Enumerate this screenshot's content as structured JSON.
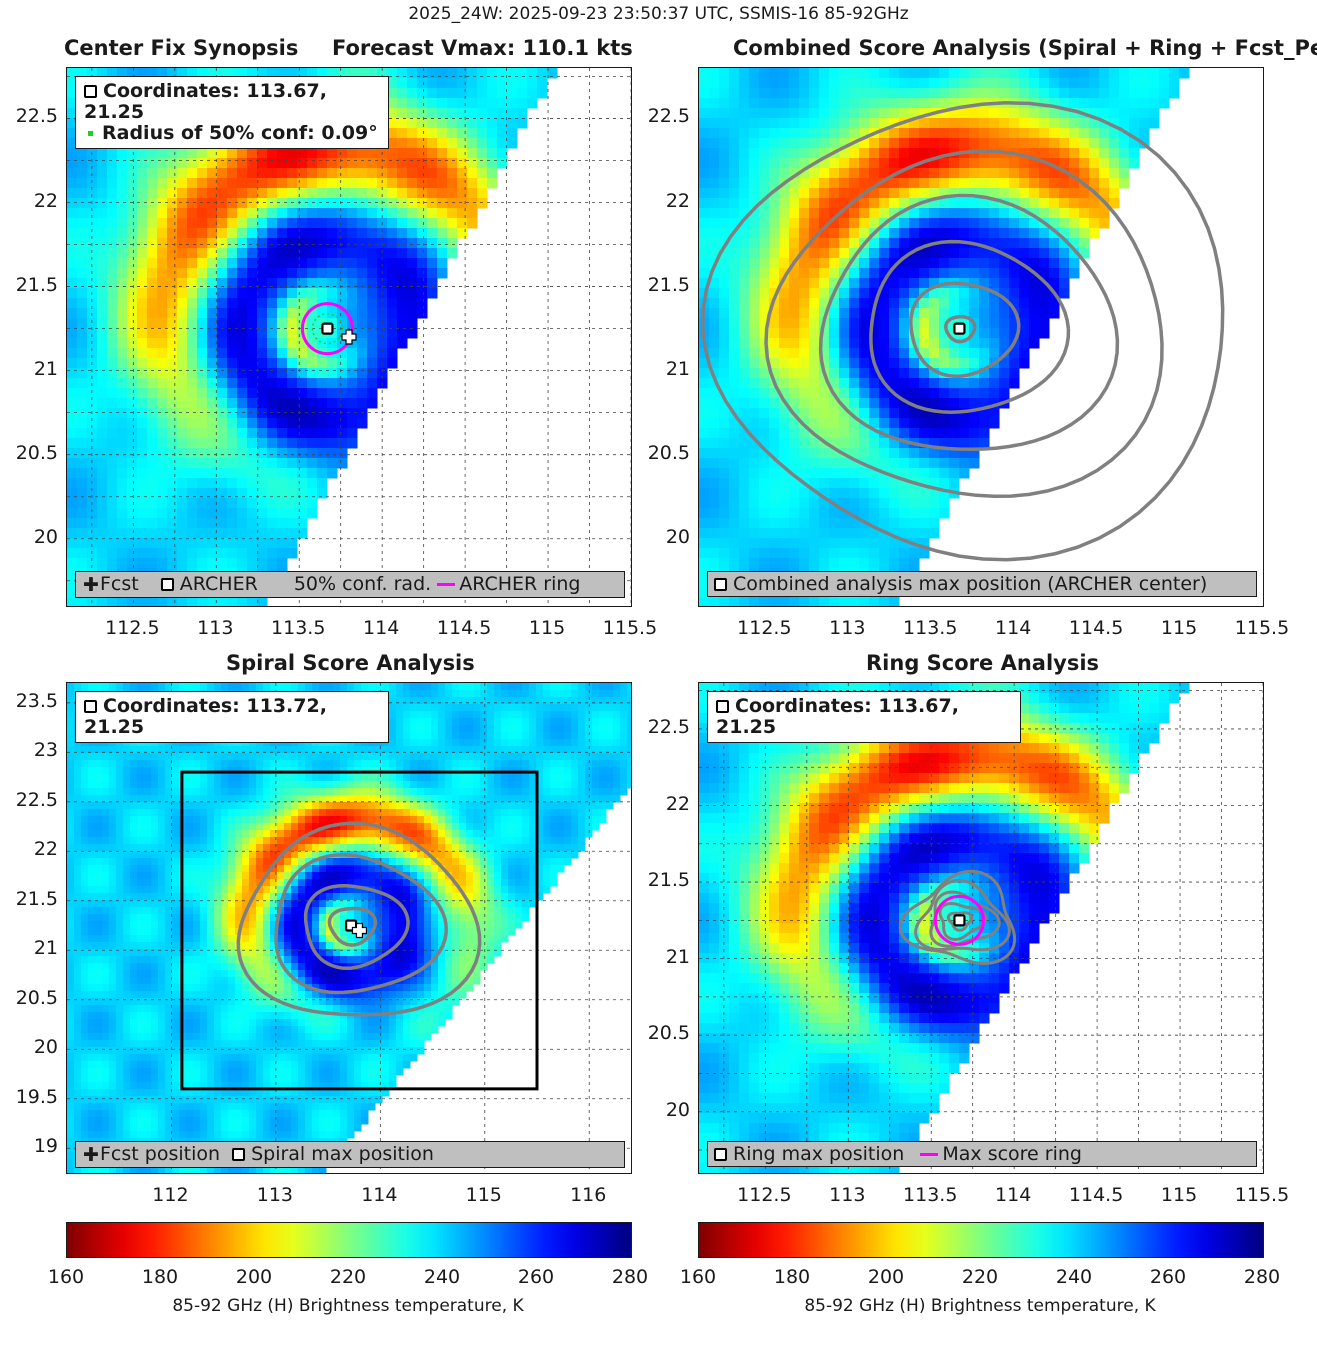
{
  "suptitle": "2025_24W: 2025-09-23 23:50:37 UTC, SSMIS-16 85-92GHz",
  "colors": {
    "contour": "#808080",
    "magenta_ring": "#ff00ff",
    "conf_dots": "#22cc22",
    "legend_bg": "#bfbfbf"
  },
  "colorbar": {
    "colormap": "jet_reversed",
    "ticks": [
      "160",
      "180",
      "200",
      "220",
      "240",
      "260",
      "280"
    ],
    "range": [
      160,
      280
    ],
    "label": "85-92 GHz (H) Brightness temperature, K"
  },
  "panels": {
    "p1": {
      "title_left": "Center Fix Synopsis",
      "title_right": "Forecast Vmax: 110.1 kts",
      "x_ticks": [
        "112.5",
        "113",
        "113.5",
        "114",
        "114.5",
        "115",
        "115.5"
      ],
      "y_ticks": [
        "22.5",
        "22",
        "21.5",
        "21",
        "20.5",
        "20"
      ],
      "legend_top": {
        "coords": "Coordinates: 113.67, 21.25",
        "radius": "Radius of 50% conf: 0.09°"
      },
      "legend_bottom": {
        "fcst": "Fcst",
        "archer": "ARCHER",
        "conf": "50% conf. rad.",
        "ring": "ARCHER ring"
      }
    },
    "p2": {
      "title": "Combined Score Analysis (Spiral + Ring + Fcst_Pe",
      "x_ticks": [
        "112.5",
        "113",
        "113.5",
        "114",
        "114.5",
        "115",
        "115.5"
      ],
      "y_ticks": [
        "22.5",
        "22",
        "21.5",
        "21",
        "20.5",
        "20"
      ],
      "legend_bottom": {
        "label": "Combined analysis max position (ARCHER center)"
      }
    },
    "p3": {
      "title": "Spiral Score Analysis",
      "x_ticks": [
        "112",
        "113",
        "114",
        "115",
        "116"
      ],
      "y_ticks": [
        "23.5",
        "23",
        "22.5",
        "22",
        "21.5",
        "21",
        "20.5",
        "20",
        "19.5",
        "19"
      ],
      "legend_top": {
        "coords": "Coordinates: 113.72, 21.25"
      },
      "legend_bottom": {
        "fcst": "Fcst position",
        "spiral": "Spiral max position"
      }
    },
    "p4": {
      "title": "Ring Score Analysis",
      "x_ticks": [
        "112.5",
        "113",
        "113.5",
        "114",
        "114.5",
        "115",
        "115.5"
      ],
      "y_ticks": [
        "22.5",
        "22",
        "21.5",
        "21",
        "20.5",
        "20"
      ],
      "legend_top": {
        "coords": "Coordinates: 113.67, 21.25"
      },
      "legend_bottom": {
        "ring_max": "Ring max position",
        "max_ring": "Max score ring"
      }
    }
  },
  "chart_data": [
    {
      "type": "heatmap",
      "title": "Center Fix Synopsis",
      "subtitle": "Forecast Vmax: 110.1 kts",
      "xlim": [
        112.1,
        115.5
      ],
      "ylim": [
        19.6,
        22.8
      ],
      "center": {
        "lon": 113.67,
        "lat": 21.25
      },
      "forecast": {
        "lon": 113.8,
        "lat": 21.2
      },
      "conf_radius_deg": 0.09,
      "grid": true
    },
    {
      "type": "heatmap",
      "title": "Combined Score Analysis (Spiral + Ring + Fcst_Pe",
      "xlim": [
        112.1,
        115.5
      ],
      "ylim": [
        19.6,
        22.8
      ],
      "center": {
        "lon": 113.67,
        "lat": 21.25
      },
      "grid": false
    },
    {
      "type": "heatmap",
      "title": "Spiral Score Analysis",
      "xlim": [
        111.0,
        116.4
      ],
      "ylim": [
        18.75,
        23.7
      ],
      "center": {
        "lon": 113.72,
        "lat": 21.25
      },
      "forecast": {
        "lon": 113.8,
        "lat": 21.2
      },
      "analysis_box": {
        "lon": [
          112.1,
          115.5
        ],
        "lat": [
          19.6,
          22.8
        ]
      },
      "grid": true
    },
    {
      "type": "heatmap",
      "title": "Ring Score Analysis",
      "xlim": [
        112.1,
        115.5
      ],
      "ylim": [
        19.6,
        22.8
      ],
      "center": {
        "lon": 113.67,
        "lat": 21.25
      },
      "grid": true
    }
  ]
}
